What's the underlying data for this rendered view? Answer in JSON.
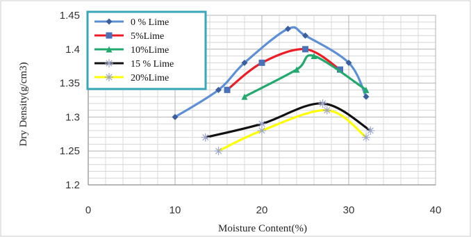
{
  "chart_data": {
    "type": "line",
    "title": "",
    "xlabel": "Moisture Content(%)",
    "ylabel": "Dry Density(g/cm3)",
    "xlim": [
      0,
      40
    ],
    "ylim": [
      1.2,
      1.45
    ],
    "xticks": [
      0,
      10,
      20,
      30,
      40
    ],
    "yticks": [
      1.2,
      1.25,
      1.3,
      1.35,
      1.4,
      1.45
    ],
    "x_tick_labels": [
      "0",
      "10",
      "20",
      "30",
      "40"
    ],
    "y_tick_labels": [
      "1.2",
      "1.25",
      "1.3",
      "1.35",
      "1.4",
      "1.45"
    ],
    "grid": true,
    "legend_position": "top-left",
    "series": [
      {
        "name": "0 %  Lime",
        "color": "#5b8fd6",
        "marker": "diamond",
        "points": [
          [
            10,
            1.3
          ],
          [
            15,
            1.34
          ],
          [
            18,
            1.38
          ],
          [
            23,
            1.43
          ],
          [
            25,
            1.42
          ],
          [
            30,
            1.38
          ],
          [
            32,
            1.33
          ]
        ]
      },
      {
        "name": "5%Lime",
        "color": "#ee1c24",
        "marker": "square",
        "points": [
          [
            16,
            1.34
          ],
          [
            20,
            1.38
          ],
          [
            25,
            1.4
          ],
          [
            29,
            1.37
          ]
        ]
      },
      {
        "name": "10%Lime",
        "color": "#22aa6e",
        "marker": "triangle",
        "points": [
          [
            18,
            1.33
          ],
          [
            24,
            1.37
          ],
          [
            26,
            1.39
          ],
          [
            32,
            1.34
          ]
        ]
      },
      {
        "name": "15 % Lime",
        "color": "#111111",
        "marker": "star",
        "points": [
          [
            13.5,
            1.27
          ],
          [
            20,
            1.29
          ],
          [
            27,
            1.32
          ],
          [
            32.5,
            1.28
          ]
        ]
      },
      {
        "name": "20%Lime",
        "color": "#ffff00",
        "marker": "star",
        "points": [
          [
            15,
            1.25
          ],
          [
            20,
            1.28
          ],
          [
            27.5,
            1.31
          ],
          [
            32,
            1.27
          ]
        ]
      }
    ]
  }
}
